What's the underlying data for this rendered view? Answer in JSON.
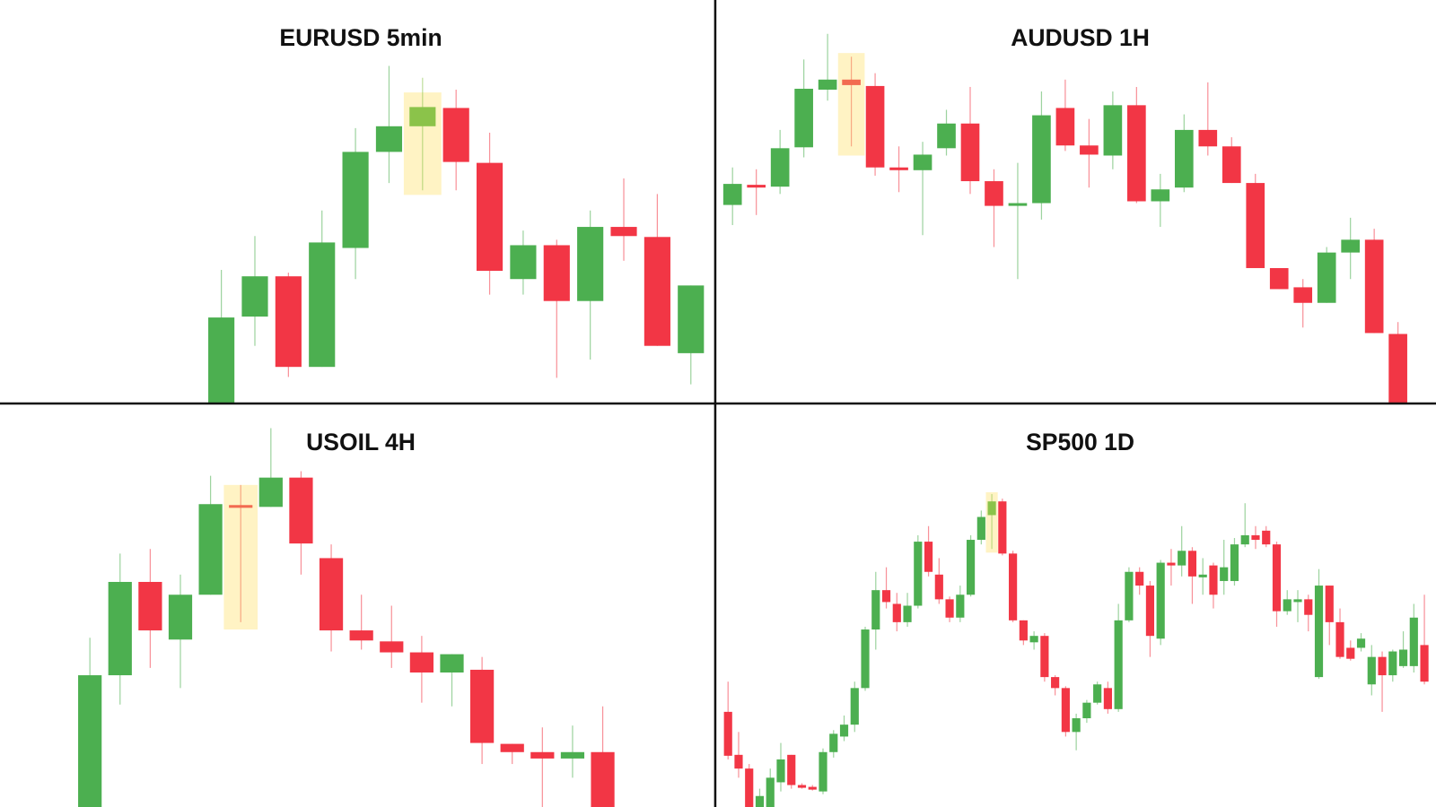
{
  "chart_data": [
    {
      "type": "candlestick",
      "title": "EURUSD 5min",
      "open": [
        0,
        94,
        138,
        39,
        169,
        274,
        302,
        322,
        262,
        135,
        172,
        111,
        192,
        181,
        54
      ],
      "close": [
        93,
        138,
        39,
        175,
        274,
        302,
        323,
        263,
        144,
        172,
        111,
        192,
        182,
        62,
        128
      ],
      "high": [
        145,
        182,
        142,
        210,
        300,
        368,
        355,
        342,
        295,
        188,
        178,
        210,
        245,
        228,
        128
      ],
      "low": [
        0,
        62,
        28,
        39,
        135,
        240,
        232,
        232,
        118,
        118,
        27,
        47,
        155,
        62,
        20
      ],
      "xlim": [
        -6.6,
        14.7
      ],
      "ylim": [
        0,
        440
      ],
      "up_color": "#4caf50",
      "down_color": "#f23645",
      "highlight": {
        "index": 6,
        "range": [
          227,
          339
        ],
        "color": "#fff3c4",
        "candle_color": "#8bc34a"
      }
    },
    {
      "type": "candlestick",
      "title": "AUDUSD 1H",
      "open": [
        216,
        238,
        236,
        279,
        342,
        353,
        346,
        257,
        254,
        278,
        305,
        242,
        215,
        218,
        322,
        281,
        270,
        325,
        220,
        235,
        298,
        280,
        240,
        147,
        126,
        109,
        164,
        178,
        75
      ],
      "close": [
        239,
        236,
        278,
        343,
        353,
        347,
        257,
        254,
        271,
        305,
        242,
        215,
        218,
        314,
        281,
        271,
        325,
        220,
        233,
        298,
        280,
        240,
        147,
        124,
        109,
        164,
        178,
        76,
        0
      ],
      "high": [
        257,
        255,
        298,
        375,
        403,
        378,
        360,
        280,
        285,
        320,
        345,
        255,
        262,
        340,
        353,
        310,
        340,
        345,
        250,
        315,
        350,
        290,
        250,
        147,
        135,
        170,
        202,
        190,
        88
      ],
      "low": [
        194,
        205,
        228,
        268,
        330,
        280,
        248,
        230,
        183,
        270,
        228,
        170,
        135,
        200,
        275,
        235,
        255,
        218,
        192,
        230,
        270,
        240,
        147,
        124,
        82,
        109,
        135,
        76,
        0
      ],
      "xlim": [
        -0.65,
        29.6
      ],
      "ylim": [
        0,
        440
      ],
      "up_color": "#4caf50",
      "down_color": "#f23645",
      "highlight": {
        "index": 5,
        "range": [
          270,
          382
        ],
        "color": "#fff3c4",
        "candle_color": "#f26b50"
      }
    },
    {
      "type": "candlestick",
      "title": "USOIL 4H",
      "open": [
        0,
        144,
        246,
        183,
        232,
        330,
        328,
        360,
        272,
        193,
        181,
        169,
        147,
        150,
        69,
        60,
        53,
        60
      ],
      "close": [
        144,
        246,
        193,
        232,
        331,
        327,
        360,
        288,
        193,
        182,
        169,
        147,
        167,
        70,
        60,
        53,
        60,
        0
      ],
      "high": [
        185,
        277,
        282,
        254,
        362,
        352,
        414,
        367,
        287,
        232,
        220,
        187,
        167,
        164,
        69,
        87,
        89,
        110
      ],
      "low": [
        0,
        112,
        152,
        130,
        232,
        202,
        328,
        254,
        170,
        172,
        152,
        114,
        110,
        47,
        47,
        0,
        32,
        0
      ],
      "xlim": [
        -2.98,
        20.7
      ],
      "ylim": [
        0,
        440
      ],
      "up_color": "#4caf50",
      "down_color": "#f23645",
      "highlight": {
        "index": 5,
        "range": [
          194,
          352
        ],
        "color": "#fff3c4",
        "candle_color": "#f26b50"
      }
    },
    {
      "type": "candlestick",
      "title": "SP500 1D",
      "open": [
        104,
        57,
        42,
        0,
        0,
        27,
        57,
        24,
        22,
        17,
        60,
        77,
        90,
        130,
        194,
        237,
        222,
        202,
        220,
        290,
        254,
        227,
        207,
        232,
        292,
        319,
        334,
        277,
        204,
        180,
        187,
        142,
        130,
        82,
        97,
        114,
        130,
        107,
        204,
        257,
        242,
        184,
        267,
        264,
        280,
        252,
        264,
        247,
        247,
        287,
        297,
        302,
        287,
        214,
        224,
        227,
        142,
        242,
        202,
        174,
        174,
        134,
        164,
        144,
        154,
        154,
        177
      ],
      "close": [
        56,
        42,
        0,
        12,
        32,
        52,
        24,
        22,
        20,
        60,
        80,
        90,
        130,
        194,
        237,
        224,
        202,
        220,
        290,
        257,
        227,
        207,
        232,
        292,
        317,
        334,
        277,
        204,
        182,
        187,
        142,
        130,
        82,
        97,
        114,
        134,
        107,
        204,
        257,
        242,
        187,
        267,
        264,
        280,
        252,
        254,
        232,
        262,
        287,
        297,
        292,
        287,
        214,
        227,
        227,
        210,
        242,
        202,
        164,
        162,
        184,
        164,
        144,
        170,
        172,
        207,
        137
      ],
      "high": [
        137,
        82,
        47,
        20,
        42,
        70,
        57,
        26,
        24,
        64,
        84,
        100,
        137,
        197,
        257,
        262,
        234,
        234,
        297,
        307,
        272,
        230,
        242,
        297,
        324,
        342,
        337,
        280,
        204,
        192,
        190,
        144,
        132,
        102,
        117,
        137,
        137,
        222,
        262,
        262,
        247,
        270,
        282,
        307,
        284,
        272,
        267,
        292,
        294,
        332,
        307,
        307,
        290,
        237,
        237,
        232,
        260,
        242,
        217,
        182,
        190,
        177,
        170,
        172,
        192,
        222,
        232
      ],
      "low": [
        52,
        32,
        0,
        0,
        0,
        17,
        20,
        20,
        18,
        14,
        54,
        72,
        82,
        127,
        172,
        217,
        192,
        197,
        217,
        252,
        222,
        202,
        202,
        230,
        287,
        282,
        275,
        202,
        177,
        172,
        137,
        122,
        77,
        62,
        92,
        112,
        102,
        104,
        202,
        232,
        164,
        177,
        242,
        252,
        222,
        232,
        217,
        232,
        242,
        284,
        282,
        284,
        197,
        210,
        202,
        192,
        140,
        177,
        162,
        160,
        170,
        122,
        104,
        137,
        152,
        147,
        134
      ],
      "xlim": [
        -1.04,
        67.1
      ],
      "ylim": [
        0,
        440
      ],
      "up_color": "#4caf50",
      "down_color": "#f23645",
      "highlight": {
        "index": 25,
        "range": [
          278,
          344
        ],
        "color": "#fff3c4",
        "candle_color": "#8bc34a"
      }
    }
  ]
}
